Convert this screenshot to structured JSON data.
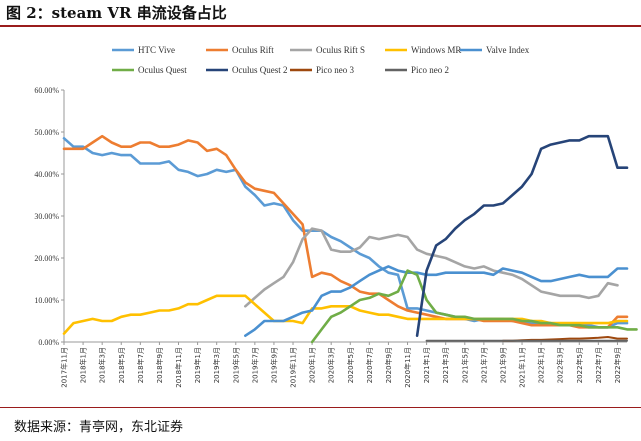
{
  "figure": {
    "title": "图 2：steam VR 串流设备占比",
    "source": "数据来源：青亭网，东北证券"
  },
  "chart_data": {
    "type": "line",
    "title": "steam VR 串流设备占比",
    "xlabel": "",
    "ylabel": "",
    "ylim": [
      0,
      60
    ],
    "yticks": [
      0,
      10,
      20,
      30,
      40,
      50,
      60
    ],
    "ytick_labels": [
      "0.00%",
      "10.00%",
      "20.00%",
      "30.00%",
      "40.00%",
      "50.00%",
      "60.00%"
    ],
    "grid": false,
    "legend_position": "top",
    "xtick_labels": [
      "2017年11月",
      "2018年1月",
      "2018年3月",
      "2018年5月",
      "2018年7月",
      "2018年9月",
      "2018年11月",
      "2019年1月",
      "2019年3月",
      "2019年5月",
      "2019年7月",
      "2019年9月",
      "2019年11月",
      "2020年1月",
      "2020年3月",
      "2020年5月",
      "2020年7月",
      "2020年9月",
      "2020年11月",
      "2021年1月",
      "2021年3月",
      "2021年5月",
      "2021年7月",
      "2021年9月",
      "2021年11月",
      "2022年1月",
      "2022年3月",
      "2022年5月",
      "2022年7月",
      "2022年9月"
    ],
    "series": [
      {
        "name": "HTC Vive",
        "color": "#5b9bd5",
        "start": 0,
        "values": [
          48.5,
          46.5,
          46.5,
          45,
          44.5,
          45,
          44.5,
          44.5,
          42.5,
          42.5,
          42.5,
          43,
          41,
          40.5,
          39.5,
          40,
          41,
          40.5,
          41,
          37,
          35,
          32.5,
          33,
          32.5,
          29,
          26.5,
          26.5,
          26.5,
          25,
          24,
          22.5,
          21,
          20,
          18,
          16.5,
          16,
          8,
          8,
          7.5,
          7,
          6.5,
          6,
          5.5,
          5,
          5.5,
          5.5,
          5.5,
          5,
          5,
          4.5,
          4,
          4,
          4,
          4,
          4,
          4,
          3.5,
          3.5,
          4.5,
          4.5
        ]
      },
      {
        "name": "Oculus Rift",
        "color": "#ed7d31",
        "start": 0,
        "values": [
          46,
          46,
          46,
          47.5,
          49,
          47.5,
          46.5,
          46.5,
          47.5,
          47.5,
          46.5,
          46.5,
          47,
          48,
          47.5,
          45.5,
          46,
          44.5,
          41,
          38,
          36.5,
          36,
          35.5,
          33,
          30.5,
          28,
          15.5,
          16.5,
          16,
          14.5,
          13.5,
          12,
          11.5,
          11.5,
          10,
          8.5,
          7.5,
          7,
          6.5,
          6,
          5.5,
          5.5,
          5.5,
          5.5,
          5,
          5,
          5,
          5,
          4.5,
          4,
          4,
          4,
          4,
          4,
          3.5,
          3.5,
          3.5,
          3.5,
          6,
          6
        ]
      },
      {
        "name": "Oculus Rift S",
        "color": "#a5a5a5",
        "start": 19,
        "values": [
          8.5,
          10.5,
          12.5,
          14,
          15.5,
          19,
          24.5,
          27,
          26.5,
          22,
          21.5,
          21.5,
          22.5,
          25,
          24.5,
          25,
          25.5,
          25,
          22,
          21,
          20.5,
          20,
          19,
          18,
          17.5,
          18,
          17,
          16.5,
          16,
          15,
          13.5,
          12,
          11.5,
          11,
          11,
          11,
          10.5,
          11,
          14,
          13.5
        ]
      },
      {
        "name": "Windows MR",
        "color": "#ffc000",
        "start": 0,
        "values": [
          2,
          4.5,
          5,
          5.5,
          5,
          5,
          6,
          6.5,
          6.5,
          7,
          7.5,
          7.5,
          8,
          9,
          9,
          10,
          11,
          11,
          11,
          11,
          9,
          7,
          5,
          5,
          5,
          4.5,
          8,
          8,
          8.5,
          8.5,
          8.5,
          7.5,
          7,
          6.5,
          6.5,
          6,
          5.5,
          5.5,
          5.5,
          5.5,
          5.5,
          5.5,
          5.5,
          5.5,
          5.5,
          5.5,
          5.5,
          5.5,
          5.5,
          5,
          5,
          4.5,
          4.5,
          4.5,
          4.5,
          4.5,
          4.5,
          4.5,
          5,
          5
        ]
      },
      {
        "name": "Valve Index",
        "color": "#4a90d0",
        "start": 19,
        "values": [
          1.5,
          3,
          5,
          5,
          5,
          6,
          7,
          7.5,
          11,
          12,
          12,
          13,
          14.5,
          16,
          17,
          18,
          17,
          16.5,
          16.5,
          16,
          16,
          16.5,
          16.5,
          16.5,
          16.5,
          16.5,
          16,
          17.5,
          17,
          16.5,
          15.5,
          14.5,
          14.5,
          15,
          15.5,
          16,
          15.5,
          15.5,
          15.5,
          17.5,
          17.5
        ]
      },
      {
        "name": "Oculus Quest",
        "color": "#70ad47",
        "start": 26,
        "values": [
          0,
          3,
          6,
          7,
          8.5,
          10,
          10.5,
          11.5,
          11,
          12,
          17,
          16,
          10,
          7,
          6.5,
          6,
          6,
          5.5,
          5.5,
          5.5,
          5.5,
          5.5,
          5,
          5,
          4.5,
          4.5,
          4,
          4,
          4,
          3.5,
          3.5,
          3.5,
          3.5,
          3,
          3
        ]
      },
      {
        "name": "Oculus Quest 2",
        "color": "#264478",
        "start": 37,
        "values": [
          1.5,
          17,
          23,
          24.5,
          27,
          29,
          30.5,
          32.5,
          32.5,
          33,
          35,
          37,
          40,
          46,
          47,
          47.5,
          48,
          48,
          49,
          49,
          49,
          41.5,
          41.5
        ]
      },
      {
        "name": "Pico neo 3",
        "color": "#9e480e",
        "start": 46,
        "values": [
          0.3,
          0.3,
          0.4,
          0.5,
          0.5,
          0.6,
          0.7,
          0.8,
          0.8,
          0.9,
          1,
          1.2,
          0.8,
          0.8
        ]
      },
      {
        "name": "Pico neo 2",
        "color": "#636363",
        "start": 38,
        "values": [
          0.3,
          0.3,
          0.3,
          0.3,
          0.3,
          0.3,
          0.3,
          0.3,
          0.3,
          0.3,
          0.3,
          0.3,
          0.3,
          0.3,
          0.3,
          0.3,
          0.3,
          0.3,
          0.3,
          0.3,
          0.3,
          0.3
        ]
      }
    ]
  }
}
